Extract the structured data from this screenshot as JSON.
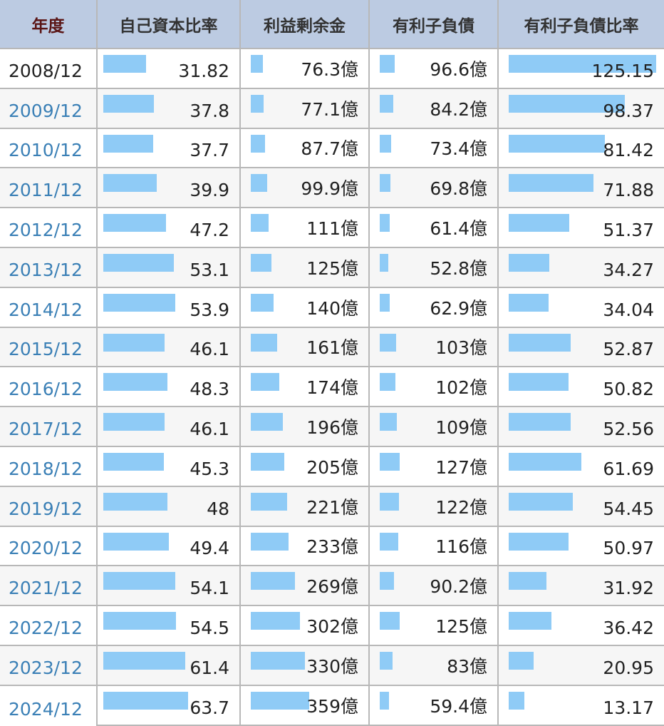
{
  "table": {
    "headers": [
      "年度",
      "自己資本比率",
      "利益剰余金",
      "有利子負債",
      "有利子負債比率"
    ],
    "years": [
      "2008/12",
      "2009/12",
      "2010/12",
      "2011/12",
      "2012/12",
      "2013/12",
      "2014/12",
      "2015/12",
      "2016/12",
      "2017/12",
      "2018/12",
      "2019/12",
      "2020/12",
      "2021/12",
      "2022/12",
      "2023/12",
      "2024/12"
    ],
    "equity_ratio": {
      "values": [
        31.82,
        37.8,
        37.7,
        39.9,
        47.2,
        53.1,
        53.9,
        46.1,
        48.3,
        46.1,
        45.3,
        48,
        49.4,
        54.1,
        54.5,
        61.4,
        63.7
      ]
    },
    "retained_earnings": {
      "values": [
        76.3,
        77.1,
        87.7,
        99.9,
        111,
        125,
        140,
        161,
        174,
        196,
        205,
        221,
        233,
        269,
        302,
        330,
        359
      ],
      "value_labels": [
        "76.3億",
        "77.1億",
        "87.7億",
        "99.9億",
        "111億",
        "125億",
        "140億",
        "161億",
        "174億",
        "196億",
        "205億",
        "221億",
        "233億",
        "269億",
        "302億",
        "330億",
        "359億"
      ]
    },
    "interest_bearing_debt": {
      "values": [
        96.6,
        84.2,
        73.4,
        69.8,
        61.4,
        52.8,
        62.9,
        103,
        102,
        109,
        127,
        122,
        116,
        90.2,
        125,
        83,
        59.4
      ],
      "value_labels": [
        "96.6億",
        "84.2億",
        "73.4億",
        "69.8億",
        "61.4億",
        "52.8億",
        "62.9億",
        "103億",
        "102億",
        "109億",
        "127億",
        "122億",
        "116億",
        "90.2億",
        "125億",
        "83億",
        "59.4億"
      ]
    },
    "debt_ratio": {
      "values": [
        125.15,
        98.37,
        81.42,
        71.88,
        51.37,
        34.27,
        34.04,
        52.87,
        50.82,
        52.56,
        61.69,
        54.45,
        50.97,
        31.92,
        36.42,
        20.95,
        13.17
      ]
    }
  }
}
